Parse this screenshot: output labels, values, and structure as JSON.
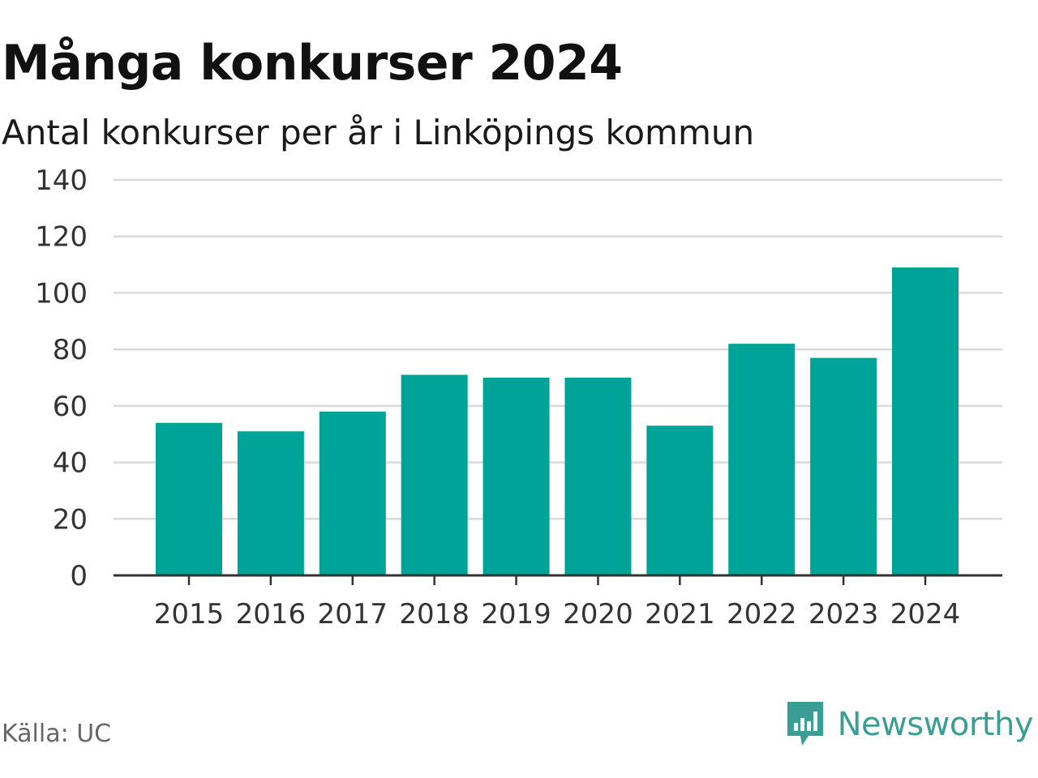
{
  "title": "Många konkurser 2024",
  "subtitle": "Antal konkurser per år i Linköpings kommun",
  "source": "Källa: UC",
  "brand": {
    "name": "Newsworthy",
    "icon": "newsworthy-logo-icon",
    "color": "#3a9e94"
  },
  "colors": {
    "bar": "#00a398",
    "grid": "#d9d9d9",
    "axis": "#333333",
    "tick_text": "#333333"
  },
  "chart_data": {
    "type": "bar",
    "title": "Många konkurser 2024",
    "subtitle": "Antal konkurser per år i Linköpings kommun",
    "xlabel": "",
    "ylabel": "",
    "categories": [
      "2015",
      "2016",
      "2017",
      "2018",
      "2019",
      "2020",
      "2021",
      "2022",
      "2023",
      "2024"
    ],
    "values": [
      54,
      51,
      58,
      71,
      70,
      70,
      53,
      82,
      77,
      109
    ],
    "ylim": [
      0,
      140
    ],
    "yticks": [
      0,
      20,
      40,
      60,
      80,
      100,
      120,
      140
    ],
    "grid": true,
    "legend": "none"
  }
}
